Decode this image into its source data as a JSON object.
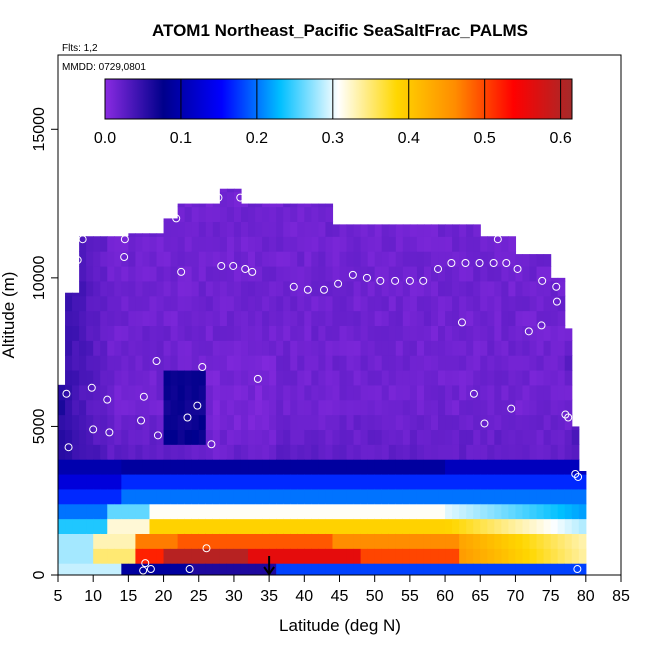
{
  "chart_data": {
    "type": "heatmap",
    "title": "ATOM1 Northeast_Pacific SeaSaltFrac_PALMS",
    "annotations": [
      "Flts: 1,2",
      "MMDD: 0729,0801"
    ],
    "xlabel": "Latitude (deg N)",
    "ylabel": "Altitude (m)",
    "xlim": [
      5,
      85
    ],
    "ylim": [
      0,
      17500
    ],
    "x_ticks": [
      "5",
      "10",
      "15",
      "20",
      "25",
      "30",
      "35",
      "40",
      "45",
      "50",
      "55",
      "60",
      "65",
      "70",
      "75",
      "80",
      "85"
    ],
    "y_ticks": [
      "0",
      "5000",
      "10000",
      "15000"
    ],
    "colorbar": {
      "min": 0,
      "max": 0.615,
      "ticks": [
        "0.0",
        "0.1",
        "0.2",
        "0.3",
        "0.4",
        "0.5",
        "0.6"
      ],
      "colors": [
        "#8a2be2",
        "#00008b",
        "#0000ff",
        "#00bfff",
        "#ffffff",
        "#ffd700",
        "#ff8c00",
        "#ff0000",
        "#a52a2a"
      ]
    },
    "marker_latitude": 35,
    "grid": false,
    "heatmap_columns": [
      {
        "lat": 5.5,
        "top": 6400,
        "bottom": 0
      },
      {
        "lat": 6.5,
        "top": 9500,
        "bottom": 0
      },
      {
        "lat": 8.5,
        "top": 11400,
        "bottom": 0
      },
      {
        "lat": 12.5,
        "top": 11400,
        "bottom": 0
      },
      {
        "lat": 15.5,
        "top": 11500,
        "bottom": 0
      },
      {
        "lat": 20.5,
        "top": 12000,
        "bottom": 0
      },
      {
        "lat": 22.5,
        "top": 12500,
        "bottom": 0
      },
      {
        "lat": 28,
        "top": 13000,
        "bottom": 0
      },
      {
        "lat": 31,
        "top": 12500,
        "bottom": 0
      },
      {
        "lat": 42.5,
        "top": 12500,
        "bottom": 0
      },
      {
        "lat": 44,
        "top": 11800,
        "bottom": 0
      },
      {
        "lat": 56,
        "top": 11800,
        "bottom": 0
      },
      {
        "lat": 65,
        "top": 11400,
        "bottom": 0
      },
      {
        "lat": 70,
        "top": 10800,
        "bottom": 0
      },
      {
        "lat": 75,
        "top": 10000,
        "bottom": 0
      },
      {
        "lat": 77.5,
        "top": 8300,
        "bottom": 0
      },
      {
        "lat": 78.5,
        "top": 5000,
        "bottom": 0
      },
      {
        "lat": 79.5,
        "top": 3500,
        "bottom": 0
      }
    ],
    "low_layers": [
      {
        "alt_min": 0,
        "alt_max": 400,
        "profile": "surface"
      },
      {
        "alt_min": 400,
        "alt_max": 900,
        "profile": "peak"
      },
      {
        "alt_min": 900,
        "alt_max": 1400,
        "profile": "high"
      },
      {
        "alt_min": 1400,
        "alt_max": 1900,
        "profile": "mid"
      },
      {
        "alt_min": 1900,
        "alt_max": 2400,
        "profile": "lowmid"
      },
      {
        "alt_min": 2400,
        "alt_max": 2900,
        "profile": "low"
      },
      {
        "alt_min": 2900,
        "alt_max": 3400,
        "profile": "vlow"
      },
      {
        "alt_min": 3400,
        "alt_max": 3900,
        "profile": "dark"
      }
    ],
    "points": [
      {
        "lat": 6.5,
        "alt": 4300
      },
      {
        "lat": 6.2,
        "alt": 6100
      },
      {
        "lat": 7.8,
        "alt": 10600
      },
      {
        "lat": 8.5,
        "alt": 11300
      },
      {
        "lat": 9.8,
        "alt": 6300
      },
      {
        "lat": 10.0,
        "alt": 4900
      },
      {
        "lat": 12.0,
        "alt": 5900
      },
      {
        "lat": 12.3,
        "alt": 4800
      },
      {
        "lat": 14.5,
        "alt": 11300
      },
      {
        "lat": 14.4,
        "alt": 10700
      },
      {
        "lat": 16.8,
        "alt": 5200
      },
      {
        "lat": 17.2,
        "alt": 6000
      },
      {
        "lat": 19.0,
        "alt": 7200
      },
      {
        "lat": 19.2,
        "alt": 4700
      },
      {
        "lat": 21.8,
        "alt": 12000
      },
      {
        "lat": 22.5,
        "alt": 10200
      },
      {
        "lat": 23.4,
        "alt": 5300
      },
      {
        "lat": 24.8,
        "alt": 5700
      },
      {
        "lat": 25.5,
        "alt": 7000
      },
      {
        "lat": 26.8,
        "alt": 4400
      },
      {
        "lat": 27.8,
        "alt": 12700
      },
      {
        "lat": 28.2,
        "alt": 10400
      },
      {
        "lat": 29.9,
        "alt": 10400
      },
      {
        "lat": 30.9,
        "alt": 12700
      },
      {
        "lat": 31.6,
        "alt": 10300
      },
      {
        "lat": 32.6,
        "alt": 10200
      },
      {
        "lat": 33.4,
        "alt": 6600
      },
      {
        "lat": 38.5,
        "alt": 9700
      },
      {
        "lat": 40.5,
        "alt": 9600
      },
      {
        "lat": 42.8,
        "alt": 9600
      },
      {
        "lat": 44.8,
        "alt": 9800
      },
      {
        "lat": 46.9,
        "alt": 10100
      },
      {
        "lat": 48.9,
        "alt": 10000
      },
      {
        "lat": 50.8,
        "alt": 9900
      },
      {
        "lat": 52.9,
        "alt": 9900
      },
      {
        "lat": 55.0,
        "alt": 9900
      },
      {
        "lat": 56.9,
        "alt": 9900
      },
      {
        "lat": 59.0,
        "alt": 10300
      },
      {
        "lat": 60.9,
        "alt": 10500
      },
      {
        "lat": 62.4,
        "alt": 8500
      },
      {
        "lat": 62.9,
        "alt": 10500
      },
      {
        "lat": 64.1,
        "alt": 6100
      },
      {
        "lat": 64.9,
        "alt": 10500
      },
      {
        "lat": 65.6,
        "alt": 5100
      },
      {
        "lat": 66.9,
        "alt": 10500
      },
      {
        "lat": 67.5,
        "alt": 11300
      },
      {
        "lat": 68.7,
        "alt": 10500
      },
      {
        "lat": 69.4,
        "alt": 5600
      },
      {
        "lat": 70.3,
        "alt": 10300
      },
      {
        "lat": 71.9,
        "alt": 8200
      },
      {
        "lat": 73.7,
        "alt": 8400
      },
      {
        "lat": 73.8,
        "alt": 9900
      },
      {
        "lat": 75.8,
        "alt": 9700
      },
      {
        "lat": 75.9,
        "alt": 9200
      },
      {
        "lat": 77.1,
        "alt": 5400
      },
      {
        "lat": 77.5,
        "alt": 5300
      },
      {
        "lat": 78.5,
        "alt": 3400
      },
      {
        "lat": 78.9,
        "alt": 3300
      },
      {
        "lat": 78.8,
        "alt": 200
      },
      {
        "lat": 17.4,
        "alt": 400
      },
      {
        "lat": 18.2,
        "alt": 200
      },
      {
        "lat": 17.1,
        "alt": 150
      },
      {
        "lat": 23.7,
        "alt": 200
      },
      {
        "lat": 26.1,
        "alt": 900
      }
    ]
  }
}
